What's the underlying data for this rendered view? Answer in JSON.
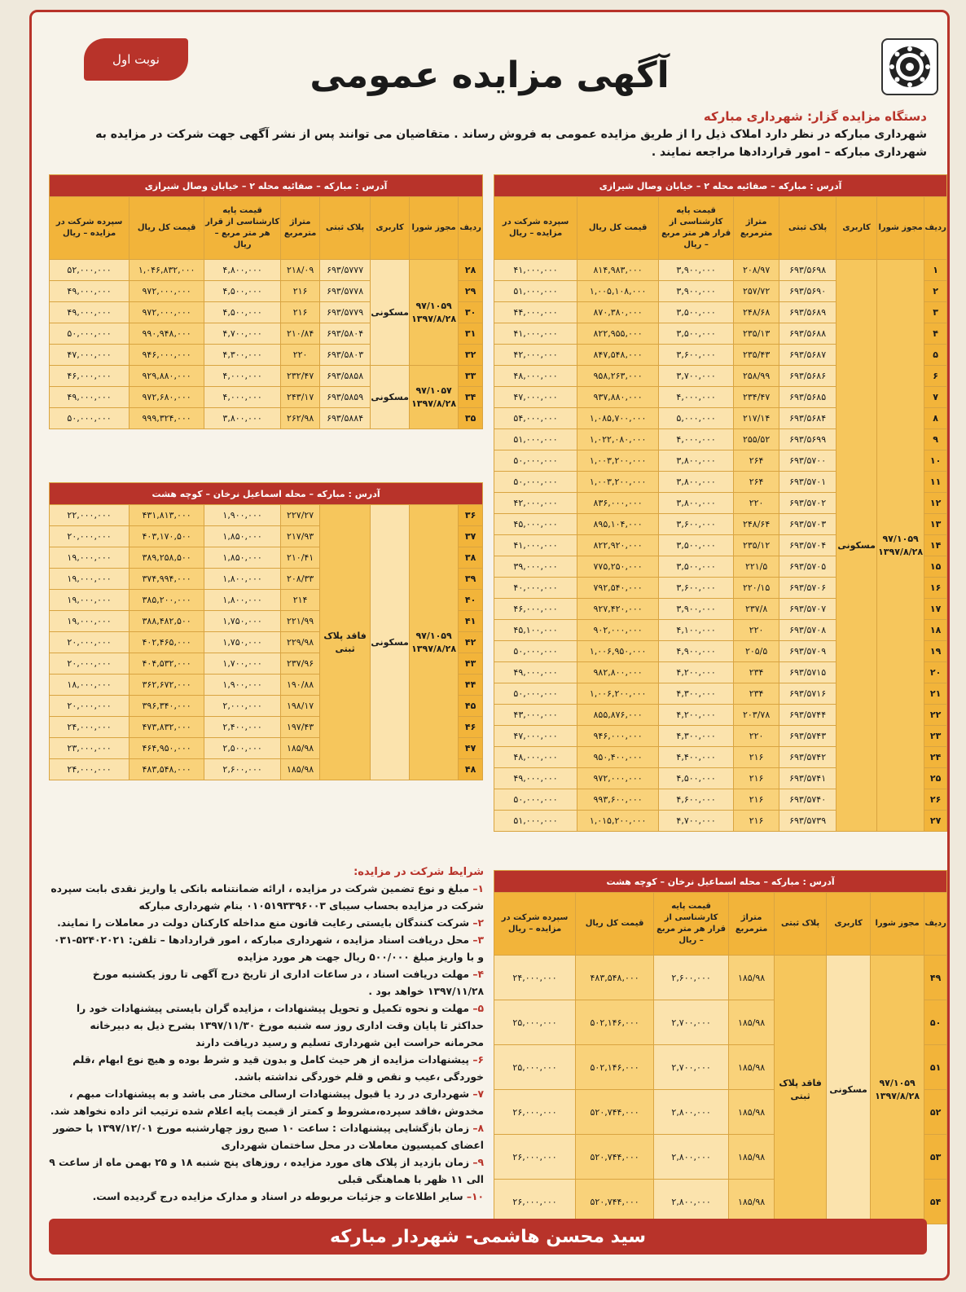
{
  "header": {
    "badge": "نوبت اول",
    "title": "آگهی مزایده عمومی",
    "auctioneer_label": "دستگاه مزایده گزار: شهرداری مبارکه",
    "intro_text": "شهرداری مبارکه در نظر دارد املاک ذیل را از طریق مزایده عمومی به فروش رساند . متقاضیان می توانند پس از نشر آگهی جهت شرکت در مزایده به شهرداری مبارکه – امور قراردادها مراجعه نمایند ."
  },
  "columns": {
    "row": "ردیف",
    "permit": "مجوز شورا",
    "usage": "کاربری",
    "plaque": "پلاک ثبتی",
    "area": "متراژ مترمربع",
    "base_price": "قیمت پایه کارشناسی از قرار هر متر مربع – ریال",
    "total": "قیمت کل ریال",
    "deposit": "سپرده شرکت در مزایده – ریال"
  },
  "table_a": {
    "address": "آدرس : مبارکه – صفائیه محله ۲ – خیابان وصال شیرازی",
    "permit": "۹۷/۱۰۵۹ ۱۳۹۷/۸/۲۸",
    "usage": "مسکونی",
    "rows": [
      {
        "n": "۱",
        "plaque": "۶۹۳/۵۶۹۸",
        "area": "۲۰۸/۹۷",
        "base": "۳,۹۰۰,۰۰۰",
        "total": "۸۱۴,۹۸۳,۰۰۰",
        "deposit": "۴۱,۰۰۰,۰۰۰"
      },
      {
        "n": "۲",
        "plaque": "۶۹۳/۵۶۹۰",
        "area": "۲۵۷/۷۲",
        "base": "۳,۹۰۰,۰۰۰",
        "total": "۱,۰۰۵,۱۰۸,۰۰۰",
        "deposit": "۵۱,۰۰۰,۰۰۰"
      },
      {
        "n": "۳",
        "plaque": "۶۹۳/۵۶۸۹",
        "area": "۲۴۸/۶۸",
        "base": "۳,۵۰۰,۰۰۰",
        "total": "۸۷۰,۳۸۰,۰۰۰",
        "deposit": "۴۴,۰۰۰,۰۰۰"
      },
      {
        "n": "۴",
        "plaque": "۶۹۳/۵۶۸۸",
        "area": "۲۳۵/۱۳",
        "base": "۳,۵۰۰,۰۰۰",
        "total": "۸۲۲,۹۵۵,۰۰۰",
        "deposit": "۴۱,۰۰۰,۰۰۰"
      },
      {
        "n": "۵",
        "plaque": "۶۹۳/۵۶۸۷",
        "area": "۲۳۵/۴۳",
        "base": "۳,۶۰۰,۰۰۰",
        "total": "۸۴۷,۵۴۸,۰۰۰",
        "deposit": "۴۲,۰۰۰,۰۰۰"
      },
      {
        "n": "۶",
        "plaque": "۶۹۳/۵۶۸۶",
        "area": "۲۵۸/۹۹",
        "base": "۳,۷۰۰,۰۰۰",
        "total": "۹۵۸,۲۶۳,۰۰۰",
        "deposit": "۴۸,۰۰۰,۰۰۰"
      },
      {
        "n": "۷",
        "plaque": "۶۹۳/۵۶۸۵",
        "area": "۲۳۴/۴۷",
        "base": "۴,۰۰۰,۰۰۰",
        "total": "۹۳۷,۸۸۰,۰۰۰",
        "deposit": "۴۷,۰۰۰,۰۰۰"
      },
      {
        "n": "۸",
        "plaque": "۶۹۳/۵۶۸۴",
        "area": "۲۱۷/۱۴",
        "base": "۵,۰۰۰,۰۰۰",
        "total": "۱,۰۸۵,۷۰۰,۰۰۰",
        "deposit": "۵۴,۰۰۰,۰۰۰"
      },
      {
        "n": "۹",
        "plaque": "۶۹۳/۵۶۹۹",
        "area": "۲۵۵/۵۲",
        "base": "۴,۰۰۰,۰۰۰",
        "total": "۱,۰۲۲,۰۸۰,۰۰۰",
        "deposit": "۵۱,۰۰۰,۰۰۰"
      },
      {
        "n": "۱۰",
        "plaque": "۶۹۳/۵۷۰۰",
        "area": "۲۶۴",
        "base": "۳,۸۰۰,۰۰۰",
        "total": "۱,۰۰۳,۲۰۰,۰۰۰",
        "deposit": "۵۰,۰۰۰,۰۰۰"
      },
      {
        "n": "۱۱",
        "plaque": "۶۹۳/۵۷۰۱",
        "area": "۲۶۴",
        "base": "۳,۸۰۰,۰۰۰",
        "total": "۱,۰۰۳,۲۰۰,۰۰۰",
        "deposit": "۵۰,۰۰۰,۰۰۰"
      },
      {
        "n": "۱۲",
        "plaque": "۶۹۳/۵۷۰۲",
        "area": "۲۲۰",
        "base": "۳,۸۰۰,۰۰۰",
        "total": "۸۳۶,۰۰۰,۰۰۰",
        "deposit": "۴۲,۰۰۰,۰۰۰"
      },
      {
        "n": "۱۳",
        "plaque": "۶۹۳/۵۷۰۳",
        "area": "۲۴۸/۶۴",
        "base": "۳,۶۰۰,۰۰۰",
        "total": "۸۹۵,۱۰۴,۰۰۰",
        "deposit": "۴۵,۰۰۰,۰۰۰"
      },
      {
        "n": "۱۴",
        "plaque": "۶۹۳/۵۷۰۴",
        "area": "۲۳۵/۱۲",
        "base": "۳,۵۰۰,۰۰۰",
        "total": "۸۲۲,۹۲۰,۰۰۰",
        "deposit": "۴۱,۰۰۰,۰۰۰"
      },
      {
        "n": "۱۵",
        "plaque": "۶۹۳/۵۷۰۵",
        "area": "۲۲۱/۵",
        "base": "۳,۵۰۰,۰۰۰",
        "total": "۷۷۵,۲۵۰,۰۰۰",
        "deposit": "۳۹,۰۰۰,۰۰۰"
      },
      {
        "n": "۱۶",
        "plaque": "۶۹۳/۵۷۰۶",
        "area": "۲۲۰/۱۵",
        "base": "۳,۶۰۰,۰۰۰",
        "total": "۷۹۲,۵۴۰,۰۰۰",
        "deposit": "۴۰,۰۰۰,۰۰۰"
      },
      {
        "n": "۱۷",
        "plaque": "۶۹۳/۵۷۰۷",
        "area": "۲۳۷/۸",
        "base": "۳,۹۰۰,۰۰۰",
        "total": "۹۲۷,۴۲۰,۰۰۰",
        "deposit": "۴۶,۰۰۰,۰۰۰"
      },
      {
        "n": "۱۸",
        "plaque": "۶۹۳/۵۷۰۸",
        "area": "۲۲۰",
        "base": "۴,۱۰۰,۰۰۰",
        "total": "۹۰۲,۰۰۰,۰۰۰",
        "deposit": "۴۵,۱۰۰,۰۰۰"
      },
      {
        "n": "۱۹",
        "plaque": "۶۹۳/۵۷۰۹",
        "area": "۲۰۵/۵",
        "base": "۴,۹۰۰,۰۰۰",
        "total": "۱,۰۰۶,۹۵۰,۰۰۰",
        "deposit": "۵۰,۰۰۰,۰۰۰"
      },
      {
        "n": "۲۰",
        "plaque": "۶۹۳/۵۷۱۵",
        "area": "۲۳۴",
        "base": "۴,۲۰۰,۰۰۰",
        "total": "۹۸۲,۸۰۰,۰۰۰",
        "deposit": "۴۹,۰۰۰,۰۰۰"
      },
      {
        "n": "۲۱",
        "plaque": "۶۹۳/۵۷۱۶",
        "area": "۲۳۴",
        "base": "۴,۳۰۰,۰۰۰",
        "total": "۱,۰۰۶,۲۰۰,۰۰۰",
        "deposit": "۵۰,۰۰۰,۰۰۰"
      },
      {
        "n": "۲۲",
        "plaque": "۶۹۳/۵۷۴۴",
        "area": "۲۰۳/۷۸",
        "base": "۴,۲۰۰,۰۰۰",
        "total": "۸۵۵,۸۷۶,۰۰۰",
        "deposit": "۴۳,۰۰۰,۰۰۰"
      },
      {
        "n": "۲۳",
        "plaque": "۶۹۳/۵۷۴۳",
        "area": "۲۲۰",
        "base": "۴,۳۰۰,۰۰۰",
        "total": "۹۴۶,۰۰۰,۰۰۰",
        "deposit": "۴۷,۰۰۰,۰۰۰"
      },
      {
        "n": "۲۴",
        "plaque": "۶۹۳/۵۷۴۲",
        "area": "۲۱۶",
        "base": "۴,۴۰۰,۰۰۰",
        "total": "۹۵۰,۴۰۰,۰۰۰",
        "deposit": "۴۸,۰۰۰,۰۰۰"
      },
      {
        "n": "۲۵",
        "plaque": "۶۹۳/۵۷۴۱",
        "area": "۲۱۶",
        "base": "۴,۵۰۰,۰۰۰",
        "total": "۹۷۲,۰۰۰,۰۰۰",
        "deposit": "۴۹,۰۰۰,۰۰۰"
      },
      {
        "n": "۲۶",
        "plaque": "۶۹۳/۵۷۴۰",
        "area": "۲۱۶",
        "base": "۴,۶۰۰,۰۰۰",
        "total": "۹۹۳,۶۰۰,۰۰۰",
        "deposit": "۵۰,۰۰۰,۰۰۰"
      },
      {
        "n": "۲۷",
        "plaque": "۶۹۳/۵۷۳۹",
        "area": "۲۱۶",
        "base": "۴,۷۰۰,۰۰۰",
        "total": "۱,۰۱۵,۲۰۰,۰۰۰",
        "deposit": "۵۱,۰۰۰,۰۰۰"
      }
    ]
  },
  "table_b": {
    "address": "آدرس : مبارکه – صفائیه محله ۲ – خیابان وصال شیرازی",
    "usage": "مسکونی",
    "permit_1": "۹۷/۱۰۵۹ ۱۳۹۷/۸/۲۸",
    "permit_2": "۹۷/۱۰۵۷ ۱۳۹۷/۸/۲۸",
    "rows": [
      {
        "n": "۲۸",
        "plaque": "۶۹۳/۵۷۷۷",
        "area": "۲۱۸/۰۹",
        "base": "۴,۸۰۰,۰۰۰",
        "total": "۱,۰۴۶,۸۳۲,۰۰۰",
        "deposit": "۵۲,۰۰۰,۰۰۰"
      },
      {
        "n": "۲۹",
        "plaque": "۶۹۳/۵۷۷۸",
        "area": "۲۱۶",
        "base": "۴,۵۰۰,۰۰۰",
        "total": "۹۷۲,۰۰۰,۰۰۰",
        "deposit": "۴۹,۰۰۰,۰۰۰"
      },
      {
        "n": "۳۰",
        "plaque": "۶۹۳/۵۷۷۹",
        "area": "۲۱۶",
        "base": "۴,۵۰۰,۰۰۰",
        "total": "۹۷۲,۰۰۰,۰۰۰",
        "deposit": "۴۹,۰۰۰,۰۰۰"
      },
      {
        "n": "۳۱",
        "plaque": "۶۹۳/۵۸۰۴",
        "area": "۲۱۰/۸۴",
        "base": "۴,۷۰۰,۰۰۰",
        "total": "۹۹۰,۹۴۸,۰۰۰",
        "deposit": "۵۰,۰۰۰,۰۰۰"
      },
      {
        "n": "۳۲",
        "plaque": "۶۹۳/۵۸۰۳",
        "area": "۲۲۰",
        "base": "۴,۳۰۰,۰۰۰",
        "total": "۹۴۶,۰۰۰,۰۰۰",
        "deposit": "۴۷,۰۰۰,۰۰۰"
      },
      {
        "n": "۳۳",
        "plaque": "۶۹۳/۵۸۵۸",
        "area": "۲۳۲/۴۷",
        "base": "۴,۰۰۰,۰۰۰",
        "total": "۹۲۹,۸۸۰,۰۰۰",
        "deposit": "۴۶,۰۰۰,۰۰۰"
      },
      {
        "n": "۳۴",
        "plaque": "۶۹۳/۵۸۵۹",
        "area": "۲۴۳/۱۷",
        "base": "۴,۰۰۰,۰۰۰",
        "total": "۹۷۲,۶۸۰,۰۰۰",
        "deposit": "۴۹,۰۰۰,۰۰۰"
      },
      {
        "n": "۳۵",
        "plaque": "۶۹۳/۵۸۸۴",
        "area": "۲۶۲/۹۸",
        "base": "۳,۸۰۰,۰۰۰",
        "total": "۹۹۹,۳۲۴,۰۰۰",
        "deposit": "۵۰,۰۰۰,۰۰۰"
      }
    ]
  },
  "table_c": {
    "address": "آدرس : مبارکه – محله اسماعیل نرخان – کوچه هشت",
    "permit": "۹۷/۱۰۵۹ ۱۳۹۷/۸/۲۸",
    "usage": "مسکونی",
    "plaque": "فاقد پلاک ثبتی",
    "rows": [
      {
        "n": "۳۶",
        "area": "۲۲۷/۲۷",
        "base": "۱,۹۰۰,۰۰۰",
        "total": "۴۳۱,۸۱۳,۰۰۰",
        "deposit": "۲۲,۰۰۰,۰۰۰"
      },
      {
        "n": "۳۷",
        "area": "۲۱۷/۹۳",
        "base": "۱,۸۵۰,۰۰۰",
        "total": "۴۰۳,۱۷۰,۵۰۰",
        "deposit": "۲۰,۰۰۰,۰۰۰"
      },
      {
        "n": "۳۸",
        "area": "۲۱۰/۴۱",
        "base": "۱,۸۵۰,۰۰۰",
        "total": "۳۸۹,۲۵۸,۵۰۰",
        "deposit": "۱۹,۰۰۰,۰۰۰"
      },
      {
        "n": "۳۹",
        "area": "۲۰۸/۳۳",
        "base": "۱,۸۰۰,۰۰۰",
        "total": "۳۷۴,۹۹۴,۰۰۰",
        "deposit": "۱۹,۰۰۰,۰۰۰"
      },
      {
        "n": "۴۰",
        "area": "۲۱۴",
        "base": "۱,۸۰۰,۰۰۰",
        "total": "۳۸۵,۲۰۰,۰۰۰",
        "deposit": "۱۹,۰۰۰,۰۰۰"
      },
      {
        "n": "۴۱",
        "area": "۲۲۱/۹۹",
        "base": "۱,۷۵۰,۰۰۰",
        "total": "۳۸۸,۴۸۲,۵۰۰",
        "deposit": "۱۹,۰۰۰,۰۰۰"
      },
      {
        "n": "۴۲",
        "area": "۲۲۹/۹۸",
        "base": "۱,۷۵۰,۰۰۰",
        "total": "۴۰۲,۴۶۵,۰۰۰",
        "deposit": "۲۰,۰۰۰,۰۰۰"
      },
      {
        "n": "۴۳",
        "area": "۲۳۷/۹۶",
        "base": "۱,۷۰۰,۰۰۰",
        "total": "۴۰۴,۵۳۲,۰۰۰",
        "deposit": "۲۰,۰۰۰,۰۰۰"
      },
      {
        "n": "۴۴",
        "area": "۱۹۰/۸۸",
        "base": "۱,۹۰۰,۰۰۰",
        "total": "۳۶۲,۶۷۲,۰۰۰",
        "deposit": "۱۸,۰۰۰,۰۰۰"
      },
      {
        "n": "۴۵",
        "area": "۱۹۸/۱۷",
        "base": "۲,۰۰۰,۰۰۰",
        "total": "۳۹۶,۳۴۰,۰۰۰",
        "deposit": "۲۰,۰۰۰,۰۰۰"
      },
      {
        "n": "۴۶",
        "area": "۱۹۷/۴۳",
        "base": "۲,۴۰۰,۰۰۰",
        "total": "۴۷۳,۸۳۲,۰۰۰",
        "deposit": "۲۴,۰۰۰,۰۰۰"
      },
      {
        "n": "۴۷",
        "area": "۱۸۵/۹۸",
        "base": "۲,۵۰۰,۰۰۰",
        "total": "۴۶۴,۹۵۰,۰۰۰",
        "deposit": "۲۳,۰۰۰,۰۰۰"
      },
      {
        "n": "۴۸",
        "area": "۱۸۵/۹۸",
        "base": "۲,۶۰۰,۰۰۰",
        "total": "۴۸۳,۵۴۸,۰۰۰",
        "deposit": "۲۴,۰۰۰,۰۰۰"
      }
    ]
  },
  "table_d": {
    "address": "آدرس : مبارکه – محله اسماعیل نرخان – کوچه هشت",
    "permit": "۹۷/۱۰۵۹ ۱۳۹۷/۸/۲۸",
    "usage": "مسکونی",
    "plaque": "فاقد پلاک ثبتی",
    "rows": [
      {
        "n": "۴۹",
        "area": "۱۸۵/۹۸",
        "base": "۲,۶۰۰,۰۰۰",
        "total": "۴۸۳,۵۴۸,۰۰۰",
        "deposit": "۲۴,۰۰۰,۰۰۰"
      },
      {
        "n": "۵۰",
        "area": "۱۸۵/۹۸",
        "base": "۲,۷۰۰,۰۰۰",
        "total": "۵۰۲,۱۴۶,۰۰۰",
        "deposit": "۲۵,۰۰۰,۰۰۰"
      },
      {
        "n": "۵۱",
        "area": "۱۸۵/۹۸",
        "base": "۲,۷۰۰,۰۰۰",
        "total": "۵۰۲,۱۴۶,۰۰۰",
        "deposit": "۲۵,۰۰۰,۰۰۰"
      },
      {
        "n": "۵۲",
        "area": "۱۸۵/۹۸",
        "base": "۲,۸۰۰,۰۰۰",
        "total": "۵۲۰,۷۴۴,۰۰۰",
        "deposit": "۲۶,۰۰۰,۰۰۰"
      },
      {
        "n": "۵۳",
        "area": "۱۸۵/۹۸",
        "base": "۲,۸۰۰,۰۰۰",
        "total": "۵۲۰,۷۴۴,۰۰۰",
        "deposit": "۲۶,۰۰۰,۰۰۰"
      },
      {
        "n": "۵۴",
        "area": "۱۸۵/۹۸",
        "base": "۲,۸۰۰,۰۰۰",
        "total": "۵۲۰,۷۴۴,۰۰۰",
        "deposit": "۲۶,۰۰۰,۰۰۰"
      }
    ]
  },
  "conditions": {
    "heading": "شرایط شرکت در مزایده:",
    "items": [
      {
        "num": "۱",
        "text": "مبلغ و نوع تضمین شرکت در مزایده ، ارائه ضمانتنامه بانکی یا واریز نقدی بابت سپرده شرکت در مزایده بحساب سیبای ۰۱۰۵۱۹۳۳۹۶۰۰۳ بنام شهرداری مبارکه"
      },
      {
        "num": "۲",
        "text": "شرکت کنندگان بایستی رعایت قانون منع مداخله کارکنان دولت در معاملات را نمایند."
      },
      {
        "num": "۳",
        "text": "محل دریافت اسناد مزایده ، شهرداری مبارکه ، امور قراردادها – تلفن: ۵۲۴۰۲۰۲۱-۰۳۱ و با واریز مبلغ ۵۰۰/۰۰۰ ریال جهت هر مورد مزایده"
      },
      {
        "num": "۴",
        "text": "مهلت دریافت اسناد  ، در ساعات اداری از تاریخ درج آگهی تا روز یکشنبه مورخ ۱۳۹۷/۱۱/۲۸ خواهد بود ."
      },
      {
        "num": "۵",
        "text": "مهلت و نحوه تکمیل و تحویل پیشنهادات ، مزایده گران بایستی پیشنهادات خود را حداکثر تا پایان وقت اداری روز سه شنبه مورخ ۱۳۹۷/۱۱/۳۰ بشرح ذیل به دبیرخانه محرمانه حراست این شهرداری تسلیم و رسید دریافت دارند"
      },
      {
        "num": "۶",
        "text": "پیشنهادات مزایده از هر حیث کامل و بدون قید و شرط بوده و هیچ نوع ابهام ،قلم خوردگی ،عیب و نقص و قلم خوردگی نداشته باشد."
      },
      {
        "num": "۷",
        "text": "شهرداری در رد یا قبول پیشنهادات ارسالی مختار می باشد و به پیشنهادات مبهم ، مخدوش ،فاقد سپرده،مشروط و کمتر از قیمت پایه اعلام شده ترتیب اثر داده نخواهد شد."
      },
      {
        "num": "۸",
        "text": "زمان بازگشایی پیشنهادات : ساعت ۱۰ صبح روز چهارشنبه مورخ ۱۳۹۷/۱۲/۰۱ با حضور اعضای کمیسیون معاملات در محل ساختمان شهرداری"
      },
      {
        "num": "۹",
        "text": "زمان بازدید از پلاک های مورد مزایده ، روزهای پنج شنبه ۱۸ و ۲۵ بهمن ماه از ساعت ۹ الی ۱۱ ظهر با هماهنگی قبلی"
      },
      {
        "num": "۱۰",
        "text": "سایر اطلاعات و جزئیات مربوطه در اسناد و مدارک مزایده درج گردیده است."
      }
    ]
  },
  "footer": {
    "signature": "سید محسن هاشمی- شهردار مبارکه"
  }
}
